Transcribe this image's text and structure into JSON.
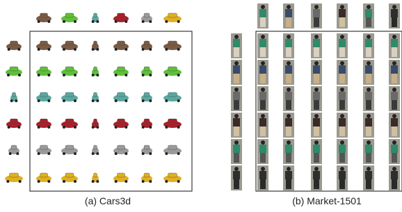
{
  "panels": [
    {
      "caption": "(a) Cars3d"
    },
    {
      "caption": "(b) Market-1501"
    }
  ]
}
